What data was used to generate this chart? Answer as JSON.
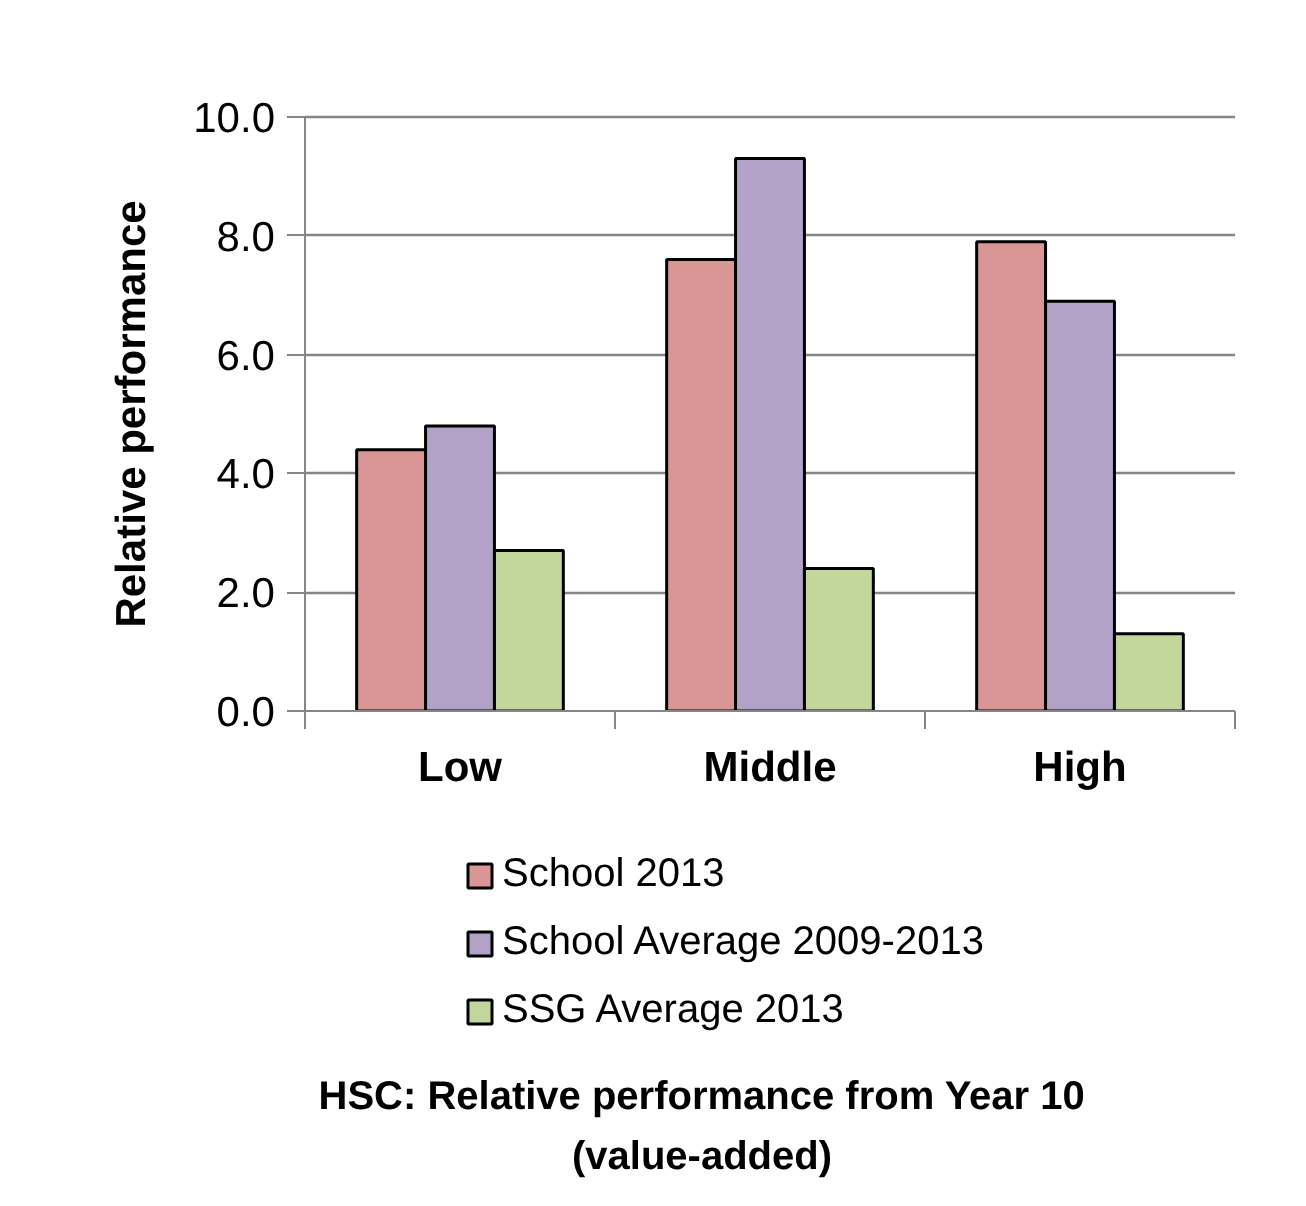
{
  "chart_data": {
    "type": "bar",
    "title": "HSC: Relative performance from Year 10 (value-added)",
    "ylabel": "Relative performance",
    "categories": [
      "Low",
      "Middle",
      "High"
    ],
    "series": [
      {
        "name": "School 2013",
        "color": "#d99694",
        "values": [
          4.4,
          7.6,
          7.9
        ]
      },
      {
        "name": "School Average 2009-2013",
        "color": "#b3a2c7",
        "values": [
          4.8,
          9.3,
          6.9
        ]
      },
      {
        "name": "SSG Average 2013",
        "color": "#c3d69b",
        "values": [
          2.7,
          2.4,
          1.3
        ]
      }
    ],
    "ylim": [
      0,
      10
    ],
    "yticks": [
      {
        "value": 0,
        "label": "0.0"
      },
      {
        "value": 2,
        "label": "2.0"
      },
      {
        "value": 4,
        "label": "4.0"
      },
      {
        "value": 6,
        "label": "6.0"
      },
      {
        "value": 8,
        "label": "8.0"
      },
      {
        "value": 10,
        "label": "10.0"
      }
    ],
    "grid": "y",
    "legend": "bottom"
  }
}
